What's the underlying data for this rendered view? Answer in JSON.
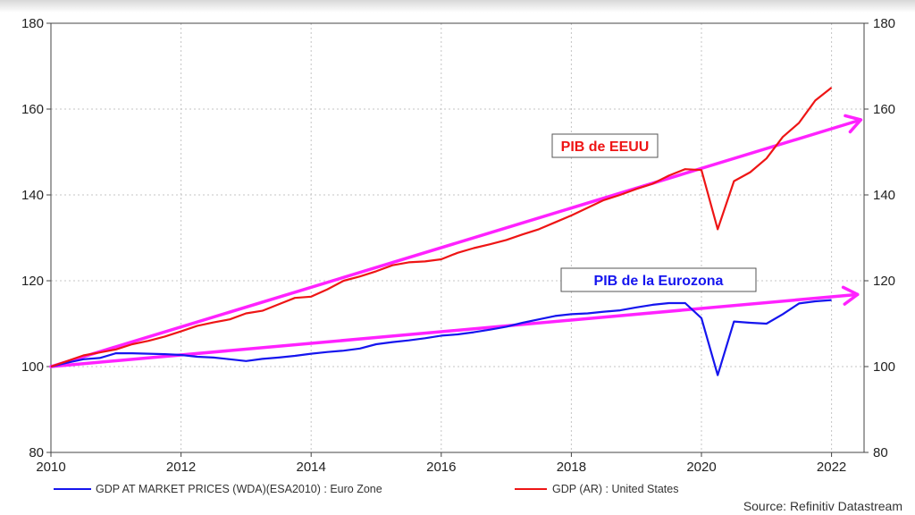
{
  "chart_data": {
    "type": "line",
    "title": "",
    "xlabel": "",
    "ylabel": "",
    "xlim": [
      2010,
      2022.5
    ],
    "ylim": [
      80,
      180
    ],
    "x_ticks": [
      2010,
      2012,
      2014,
      2016,
      2018,
      2020,
      2022
    ],
    "y_ticks": [
      80,
      100,
      120,
      140,
      160,
      180
    ],
    "grid": true,
    "series": [
      {
        "name": "GDP AT MARKET PRICES (WDA)(ESA2010) : Euro Zone",
        "color": "#1515ee",
        "x": [
          2010,
          2010.25,
          2010.5,
          2010.75,
          2011,
          2011.25,
          2011.5,
          2011.75,
          2012,
          2012.25,
          2012.5,
          2012.75,
          2013,
          2013.25,
          2013.5,
          2013.75,
          2014,
          2014.25,
          2014.5,
          2014.75,
          2015,
          2015.25,
          2015.5,
          2015.75,
          2016,
          2016.25,
          2016.5,
          2016.75,
          2017,
          2017.25,
          2017.5,
          2017.75,
          2018,
          2018.25,
          2018.5,
          2018.75,
          2019,
          2019.25,
          2019.5,
          2019.75,
          2020,
          2020.25,
          2020.5,
          2020.75,
          2021,
          2021.25,
          2021.5,
          2021.75,
          2022
        ],
        "values": [
          100.0,
          100.9,
          101.7,
          102.0,
          103.1,
          103.1,
          103.0,
          102.9,
          102.7,
          102.3,
          102.1,
          101.7,
          101.3,
          101.8,
          102.1,
          102.5,
          103.0,
          103.4,
          103.7,
          104.2,
          105.2,
          105.7,
          106.1,
          106.6,
          107.2,
          107.5,
          108.0,
          108.6,
          109.3,
          110.2,
          111.0,
          111.8,
          112.2,
          112.4,
          112.8,
          113.1,
          113.8,
          114.4,
          114.8,
          114.8,
          111.3,
          98.0,
          110.5,
          110.2,
          110.0,
          112.2,
          114.7,
          115.2,
          115.5
        ]
      },
      {
        "name": "GDP (AR) : United States",
        "color": "#ee1515",
        "x": [
          2010,
          2010.25,
          2010.5,
          2010.75,
          2011,
          2011.25,
          2011.5,
          2011.75,
          2012,
          2012.25,
          2012.5,
          2012.75,
          2013,
          2013.25,
          2013.5,
          2013.75,
          2014,
          2014.25,
          2014.5,
          2014.75,
          2015,
          2015.25,
          2015.5,
          2015.75,
          2016,
          2016.25,
          2016.5,
          2016.75,
          2017,
          2017.25,
          2017.5,
          2017.75,
          2018,
          2018.25,
          2018.5,
          2018.75,
          2019,
          2019.25,
          2019.5,
          2019.75,
          2020,
          2020.25,
          2020.5,
          2020.75,
          2021,
          2021.25,
          2021.5,
          2021.75,
          2022
        ],
        "values": [
          100.0,
          101.3,
          102.6,
          103.3,
          104.0,
          105.2,
          106.0,
          107.0,
          108.2,
          109.5,
          110.3,
          111.0,
          112.4,
          113.0,
          114.5,
          116.0,
          116.3,
          118.0,
          120.0,
          121.0,
          122.2,
          123.6,
          124.3,
          124.5,
          125.0,
          126.5,
          127.6,
          128.5,
          129.5,
          130.8,
          132.0,
          133.6,
          135.2,
          137.0,
          138.8,
          140.0,
          141.4,
          142.6,
          144.5,
          146.0,
          145.8,
          132.0,
          143.2,
          145.3,
          148.5,
          153.5,
          156.8,
          162.0,
          165.0
        ]
      }
    ],
    "annotations": [
      {
        "text": "PIB de EEUU",
        "color": "#ee1515"
      },
      {
        "text": "PIB de la Eurozona",
        "color": "#1515ee"
      }
    ],
    "trend_arrows": [
      {
        "color": "#ff22ff",
        "from": [
          2010,
          100
        ],
        "to": [
          2022.45,
          157.5
        ]
      },
      {
        "color": "#ff22ff",
        "from": [
          2010,
          100
        ],
        "to": [
          2022.4,
          116.8
        ]
      }
    ],
    "legend_position": "bottom-left",
    "source": "Source: Refinitiv Datastream"
  }
}
